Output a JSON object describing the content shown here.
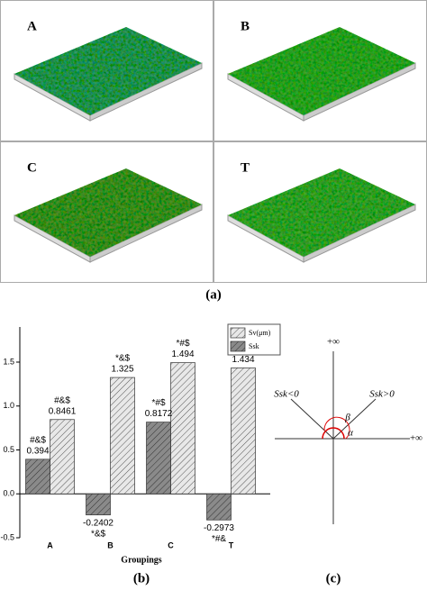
{
  "figure": {
    "panels": [
      "A",
      "B",
      "C",
      "T"
    ],
    "caption_a": "(a)",
    "caption_b": "(b)",
    "caption_c": "(c)"
  },
  "chart_data": {
    "type": "bar",
    "categories": [
      "A",
      "B",
      "C",
      "T"
    ],
    "xlabel": "Groupings",
    "ylim": [
      -0.5,
      1.9
    ],
    "yticks": [
      {
        "value": 1.5,
        "label": "1.5"
      },
      {
        "value": 1.0,
        "label": "1.0"
      },
      {
        "value": 0.5,
        "label": "0.5"
      },
      {
        "value": 0.0,
        "label": "0.0"
      },
      {
        "value": -0.5,
        "label": "-0.5"
      }
    ],
    "legend": "upper right",
    "series": [
      {
        "name": "Sv(μm)",
        "color": "#e8e8e8",
        "values": [
          0.8461,
          1.325,
          1.494,
          1.434
        ],
        "annotations": [
          "#&$",
          "*&$",
          "*#$",
          "*#&"
        ]
      },
      {
        "name": "Ssk",
        "color": "#8a8a8a",
        "values": [
          0.394,
          -0.2402,
          0.8172,
          -0.2973
        ],
        "annotations": [
          "#&$",
          "*&$",
          "*#$",
          "*#&"
        ]
      }
    ]
  },
  "diagram": {
    "top": "+∞",
    "right": "+∞",
    "left_label": "Ssk<0",
    "right_label": "Ssk>0",
    "beta": "β",
    "alpha": "α"
  }
}
